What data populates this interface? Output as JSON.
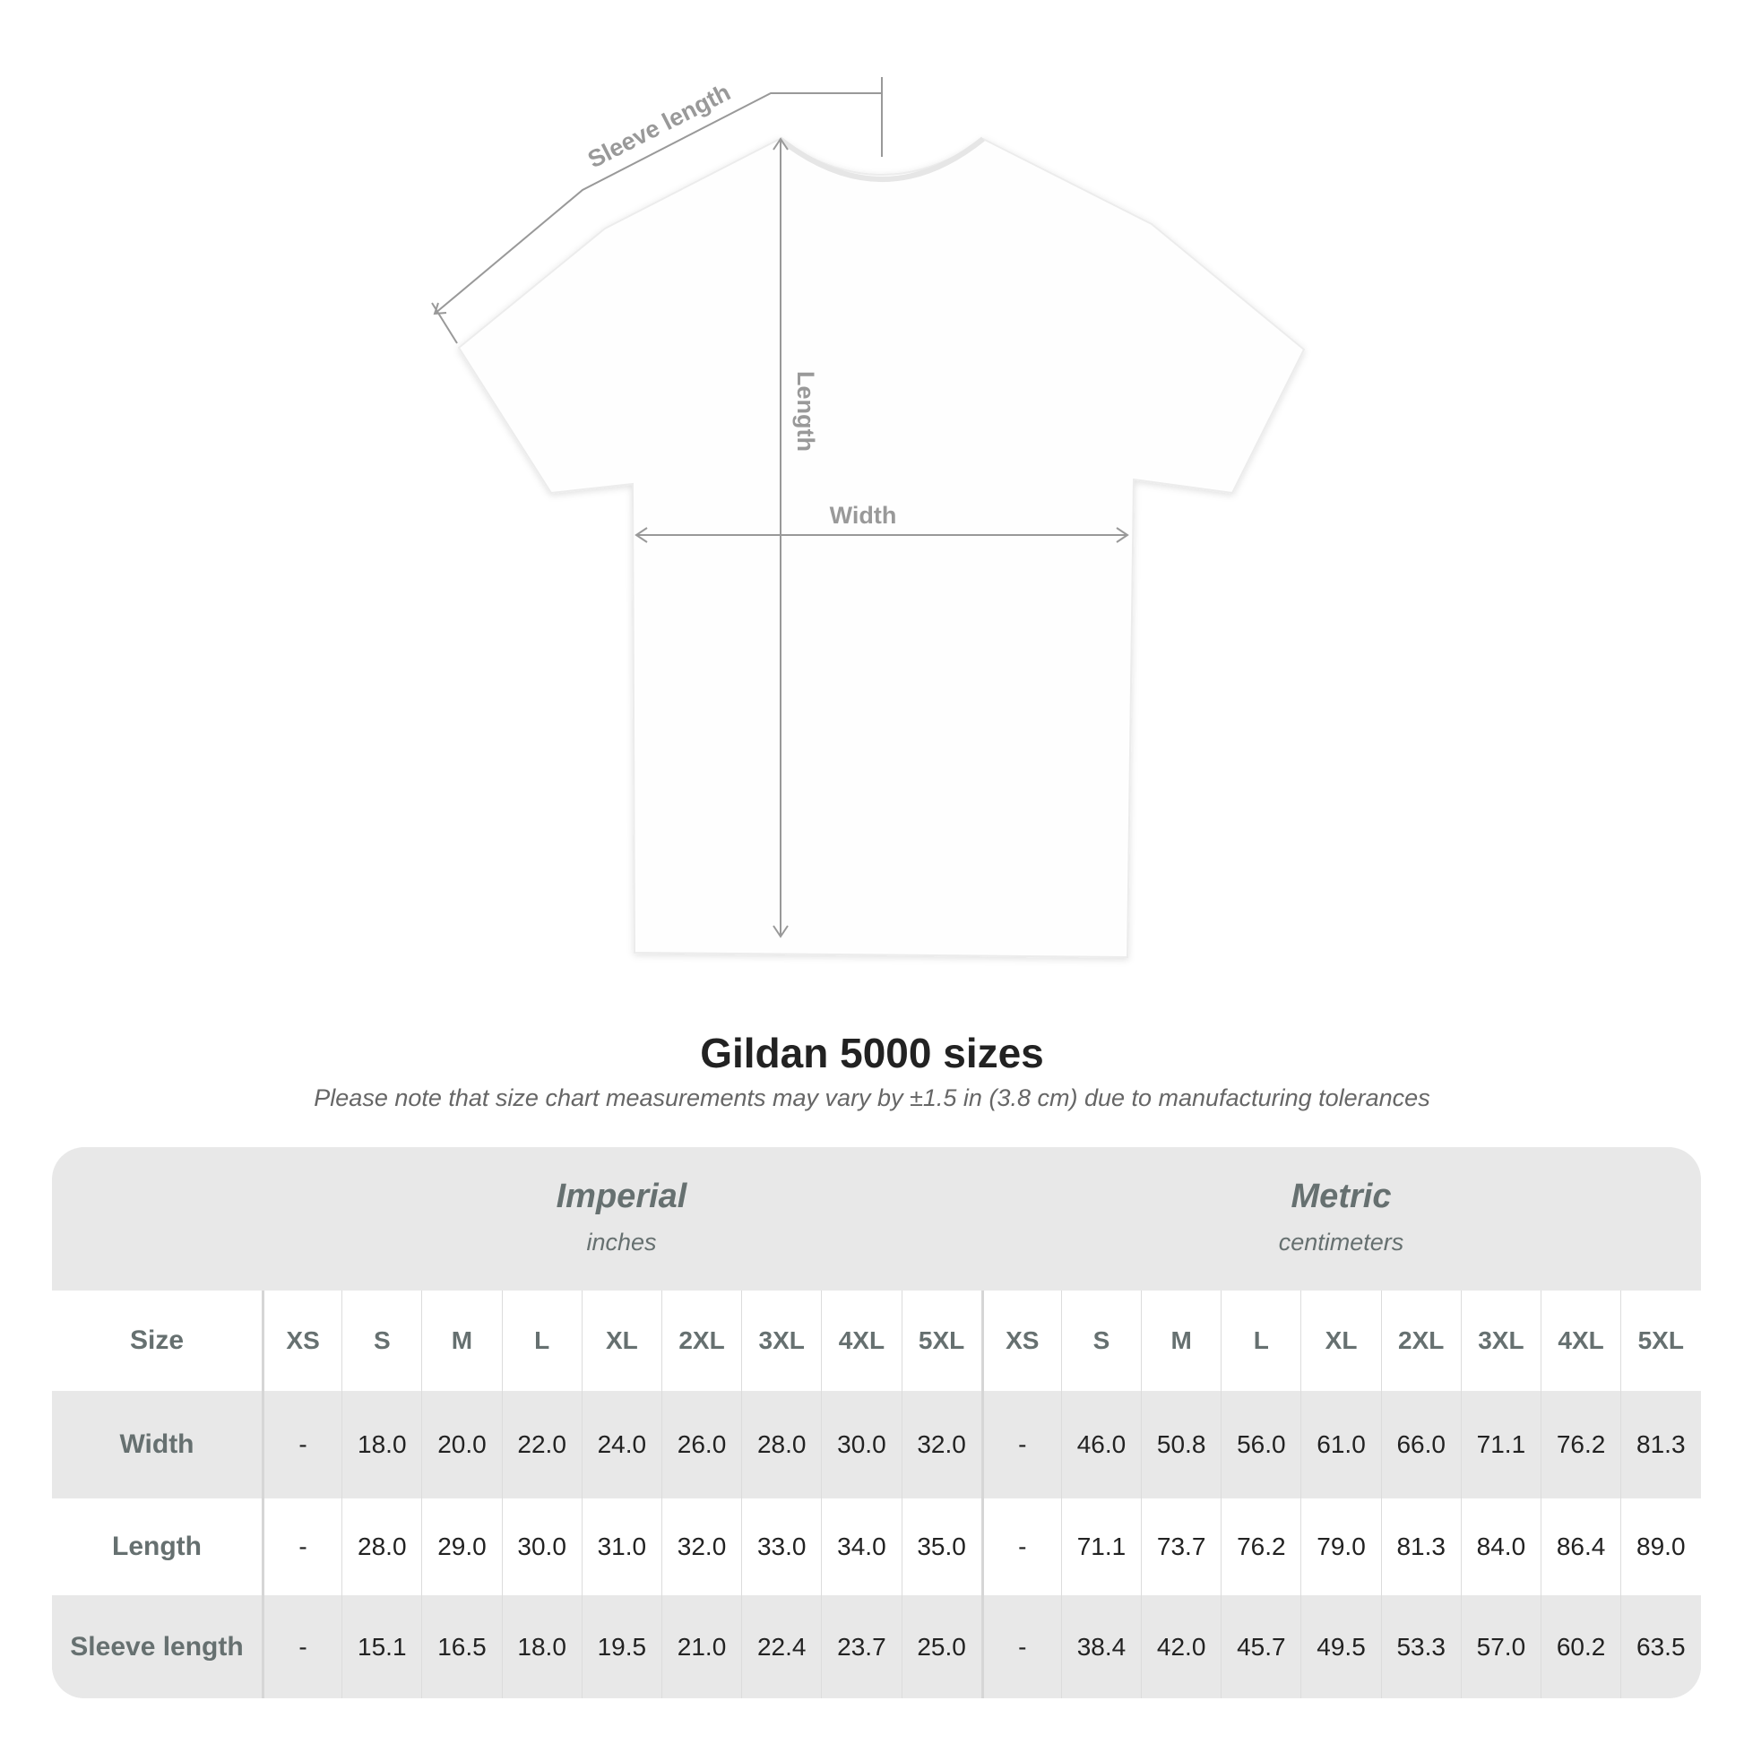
{
  "diagram": {
    "labels": {
      "sleeve": "Sleeve length",
      "length": "Length",
      "width": "Width"
    },
    "colors": {
      "shirt": "#ffffff",
      "arrow": "#999999"
    }
  },
  "title": "Gildan 5000 sizes",
  "note": "Please note that size chart measurements may vary by ±1.5 in (3.8 cm) due to manufacturing tolerances",
  "table": {
    "imperial": {
      "label": "Imperial",
      "unit": "inches"
    },
    "metric": {
      "label": "Metric",
      "unit": "centimeters"
    },
    "size_label": "Size",
    "sizes": [
      "XS",
      "S",
      "M",
      "L",
      "XL",
      "2XL",
      "3XL",
      "4XL",
      "5XL"
    ],
    "rows": [
      {
        "label": "Width",
        "imperial": [
          "-",
          "18.0",
          "20.0",
          "22.0",
          "24.0",
          "26.0",
          "28.0",
          "30.0",
          "32.0"
        ],
        "metric": [
          "-",
          "46.0",
          "50.8",
          "56.0",
          "61.0",
          "66.0",
          "71.1",
          "76.2",
          "81.3"
        ]
      },
      {
        "label": "Length",
        "imperial": [
          "-",
          "28.0",
          "29.0",
          "30.0",
          "31.0",
          "32.0",
          "33.0",
          "34.0",
          "35.0"
        ],
        "metric": [
          "-",
          "71.1",
          "73.7",
          "76.2",
          "79.0",
          "81.3",
          "84.0",
          "86.4",
          "89.0"
        ]
      },
      {
        "label": "Sleeve length",
        "imperial": [
          "-",
          "15.1",
          "16.5",
          "18.0",
          "19.5",
          "21.0",
          "22.4",
          "23.7",
          "25.0"
        ],
        "metric": [
          "-",
          "38.4",
          "42.0",
          "45.7",
          "49.5",
          "53.3",
          "57.0",
          "60.2",
          "63.5"
        ]
      }
    ]
  }
}
